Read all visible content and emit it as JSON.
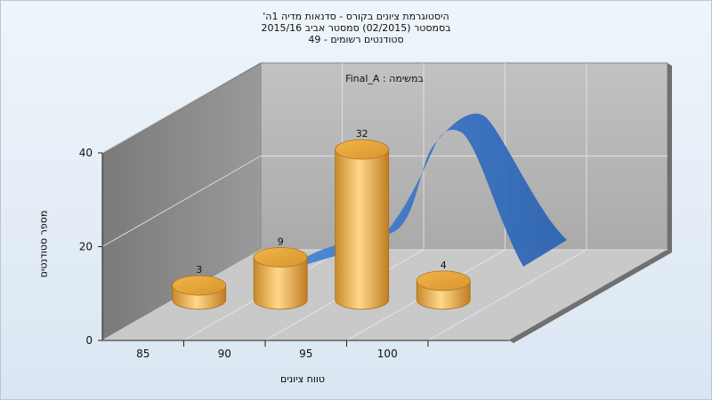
{
  "chart_data": {
    "type": "bar",
    "title": "היסטוגרמת ציונים בקורס - סדנאות מדיה 1ה'",
    "subtitle": "בסמסטר (02/2015) סמסטר אביב 2015/16",
    "subtitle2": "סטודנטים רשומים - 49",
    "inner_label": "Final_A : במשימה",
    "xlabel": "טווח ציונים",
    "ylabel": "מספר סטודנטים",
    "categories": [
      "85",
      "90",
      "95",
      "100"
    ],
    "values": [
      3,
      9,
      32,
      4
    ],
    "ylim": [
      0,
      40
    ],
    "yticks": [
      0,
      20,
      40
    ],
    "xticks": [
      85,
      90,
      95,
      100
    ],
    "grid": true,
    "colors": {
      "bar": "#e8a63a",
      "curve": "#3a74c6",
      "back_wall": "#b3b3b3",
      "side_wall": "#888888",
      "floor": "#c8c8c8"
    }
  }
}
